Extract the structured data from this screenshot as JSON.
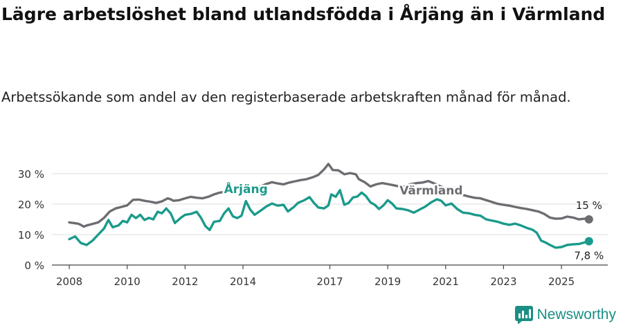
{
  "header": {
    "title": "Lägre arbetslöshet bland utlandsfödda i Årjäng än i Värmland",
    "subtitle": "Arbetssökande som andel av den registerbaserade arbetskraften månad för månad."
  },
  "brand": {
    "name": "Newsworthy"
  },
  "colors": {
    "arjang": "#1a9a8b",
    "varmland": "#6d6c71",
    "grid": "#dcdcdc",
    "axis": "#444444"
  },
  "chart_data": {
    "type": "line",
    "title": "Lägre arbetslöshet bland utlandsfödda i Årjäng än i Värmland",
    "subtitle": "Arbetssökande som andel av den registerbaserade arbetskraften månad för månad.",
    "xlabel": "",
    "ylabel": "",
    "ylim": [
      0,
      30
    ],
    "xlim": [
      2007.4,
      2026.6
    ],
    "grid": true,
    "legend": "inline labels",
    "yticks": [
      0,
      10,
      20,
      30
    ],
    "ytick_labels": [
      "0 %",
      "10 %",
      "20 %",
      "30 %"
    ],
    "xticks": [
      2008,
      2010,
      2012,
      2014,
      2017,
      2019,
      2021,
      2023,
      2025
    ],
    "xtick_labels": [
      "2008",
      "2010",
      "2012",
      "2014",
      "2017",
      "2019",
      "2021",
      "2023",
      "2025"
    ],
    "series": [
      {
        "name": "Värmland",
        "key": "varmland",
        "label": "Värmland",
        "end_label": "15 %",
        "points": [
          [
            2008.0,
            14
          ],
          [
            2008.3,
            13.6
          ],
          [
            2008.4,
            13.2
          ],
          [
            2008.5,
            12.6
          ],
          [
            2008.6,
            13.0
          ],
          [
            2008.8,
            13.5
          ],
          [
            2009.0,
            14.0
          ],
          [
            2009.2,
            15.5
          ],
          [
            2009.4,
            17.6
          ],
          [
            2009.6,
            18.6
          ],
          [
            2009.8,
            19.1
          ],
          [
            2010.0,
            19.6
          ],
          [
            2010.2,
            21.4
          ],
          [
            2010.4,
            21.5
          ],
          [
            2010.6,
            21.1
          ],
          [
            2010.8,
            20.8
          ],
          [
            2011.0,
            20.4
          ],
          [
            2011.2,
            20.9
          ],
          [
            2011.4,
            21.9
          ],
          [
            2011.5,
            21.6
          ],
          [
            2011.6,
            21.1
          ],
          [
            2011.8,
            21.3
          ],
          [
            2012.0,
            21.9
          ],
          [
            2012.2,
            22.4
          ],
          [
            2012.4,
            22.1
          ],
          [
            2012.6,
            21.9
          ],
          [
            2012.8,
            22.4
          ],
          [
            2013.0,
            23.2
          ],
          [
            2013.2,
            23.8
          ],
          [
            2013.4,
            24.0
          ],
          [
            2013.6,
            24.9
          ],
          [
            2013.8,
            25.2
          ],
          [
            2014.0,
            26.0
          ],
          [
            2014.2,
            25.6
          ],
          [
            2014.4,
            25.3
          ],
          [
            2014.6,
            25.8
          ],
          [
            2014.8,
            26.6
          ],
          [
            2015.0,
            27.2
          ],
          [
            2015.2,
            26.8
          ],
          [
            2015.4,
            26.5
          ],
          [
            2015.6,
            27.1
          ],
          [
            2015.8,
            27.5
          ],
          [
            2016.0,
            27.9
          ],
          [
            2016.2,
            28.2
          ],
          [
            2016.4,
            28.8
          ],
          [
            2016.6,
            29.6
          ],
          [
            2016.8,
            31.4
          ],
          [
            2016.95,
            33.2
          ],
          [
            2017.1,
            31.2
          ],
          [
            2017.3,
            31.1
          ],
          [
            2017.5,
            29.8
          ],
          [
            2017.7,
            30.2
          ],
          [
            2017.9,
            29.8
          ],
          [
            2018.0,
            28.2
          ],
          [
            2018.2,
            27.2
          ],
          [
            2018.4,
            25.8
          ],
          [
            2018.6,
            26.5
          ],
          [
            2018.8,
            26.9
          ],
          [
            2019.0,
            26.6
          ],
          [
            2019.2,
            26.2
          ],
          [
            2019.4,
            25.8
          ],
          [
            2019.6,
            25.8
          ],
          [
            2019.8,
            26.6
          ],
          [
            2020.0,
            26.9
          ],
          [
            2020.2,
            27.1
          ],
          [
            2020.4,
            27.6
          ],
          [
            2020.6,
            26.8
          ],
          [
            2020.8,
            25.9
          ],
          [
            2021.0,
            25.2
          ],
          [
            2021.2,
            24.3
          ],
          [
            2021.4,
            23.7
          ],
          [
            2021.6,
            23.0
          ],
          [
            2021.8,
            22.5
          ],
          [
            2022.0,
            22.1
          ],
          [
            2022.2,
            21.9
          ],
          [
            2022.4,
            21.3
          ],
          [
            2022.6,
            20.7
          ],
          [
            2022.8,
            20.1
          ],
          [
            2023.0,
            19.8
          ],
          [
            2023.2,
            19.5
          ],
          [
            2023.4,
            19.1
          ],
          [
            2023.6,
            18.7
          ],
          [
            2023.8,
            18.4
          ],
          [
            2024.0,
            18.0
          ],
          [
            2024.2,
            17.6
          ],
          [
            2024.4,
            16.8
          ],
          [
            2024.6,
            15.6
          ],
          [
            2024.8,
            15.2
          ],
          [
            2025.0,
            15.3
          ],
          [
            2025.2,
            15.9
          ],
          [
            2025.4,
            15.6
          ],
          [
            2025.6,
            15.0
          ],
          [
            2025.8,
            15.2
          ],
          [
            2025.95,
            15.0
          ]
        ]
      },
      {
        "name": "Årjäng",
        "key": "arjang",
        "label": "Årjäng",
        "end_label": "7,8 %",
        "points": [
          [
            2008.0,
            8.5
          ],
          [
            2008.2,
            9.4
          ],
          [
            2008.4,
            7.2
          ],
          [
            2008.6,
            6.6
          ],
          [
            2008.8,
            8.0
          ],
          [
            2009.0,
            10.0
          ],
          [
            2009.2,
            12.0
          ],
          [
            2009.35,
            14.8
          ],
          [
            2009.5,
            12.4
          ],
          [
            2009.7,
            13.0
          ],
          [
            2009.85,
            14.5
          ],
          [
            2010.0,
            14.0
          ],
          [
            2010.15,
            16.5
          ],
          [
            2010.3,
            15.4
          ],
          [
            2010.45,
            16.5
          ],
          [
            2010.6,
            14.8
          ],
          [
            2010.75,
            15.5
          ],
          [
            2010.9,
            15.0
          ],
          [
            2011.05,
            17.5
          ],
          [
            2011.2,
            17.0
          ],
          [
            2011.35,
            18.6
          ],
          [
            2011.5,
            17.0
          ],
          [
            2011.65,
            13.8
          ],
          [
            2011.85,
            15.5
          ],
          [
            2012.0,
            16.5
          ],
          [
            2012.2,
            16.8
          ],
          [
            2012.4,
            17.5
          ],
          [
            2012.55,
            15.5
          ],
          [
            2012.7,
            12.8
          ],
          [
            2012.85,
            11.5
          ],
          [
            2013.0,
            14.2
          ],
          [
            2013.2,
            14.5
          ],
          [
            2013.35,
            17.0
          ],
          [
            2013.5,
            18.6
          ],
          [
            2013.65,
            16.0
          ],
          [
            2013.8,
            15.4
          ],
          [
            2013.95,
            16.2
          ],
          [
            2014.1,
            21.0
          ],
          [
            2014.25,
            18.2
          ],
          [
            2014.4,
            16.5
          ],
          [
            2014.6,
            17.8
          ],
          [
            2014.8,
            19.2
          ],
          [
            2015.0,
            20.2
          ],
          [
            2015.2,
            19.5
          ],
          [
            2015.4,
            19.8
          ],
          [
            2015.55,
            17.6
          ],
          [
            2015.75,
            19.0
          ],
          [
            2015.9,
            20.4
          ],
          [
            2016.1,
            21.2
          ],
          [
            2016.3,
            22.3
          ],
          [
            2016.45,
            20.4
          ],
          [
            2016.6,
            18.9
          ],
          [
            2016.8,
            18.6
          ],
          [
            2016.95,
            19.6
          ],
          [
            2017.05,
            23.2
          ],
          [
            2017.2,
            22.4
          ],
          [
            2017.35,
            24.6
          ],
          [
            2017.5,
            19.8
          ],
          [
            2017.65,
            20.4
          ],
          [
            2017.8,
            22.2
          ],
          [
            2017.95,
            22.5
          ],
          [
            2018.1,
            23.8
          ],
          [
            2018.25,
            22.6
          ],
          [
            2018.4,
            20.6
          ],
          [
            2018.55,
            19.8
          ],
          [
            2018.7,
            18.4
          ],
          [
            2018.85,
            19.6
          ],
          [
            2019.0,
            21.3
          ],
          [
            2019.15,
            20.2
          ],
          [
            2019.3,
            18.6
          ],
          [
            2019.5,
            18.4
          ],
          [
            2019.7,
            18.0
          ],
          [
            2019.9,
            17.2
          ],
          [
            2020.1,
            18.2
          ],
          [
            2020.3,
            19.2
          ],
          [
            2020.5,
            20.6
          ],
          [
            2020.7,
            21.6
          ],
          [
            2020.85,
            21.1
          ],
          [
            2021.0,
            19.6
          ],
          [
            2021.2,
            20.2
          ],
          [
            2021.4,
            18.4
          ],
          [
            2021.6,
            17.2
          ],
          [
            2021.8,
            17.0
          ],
          [
            2022.0,
            16.5
          ],
          [
            2022.2,
            16.2
          ],
          [
            2022.4,
            15.0
          ],
          [
            2022.6,
            14.6
          ],
          [
            2022.8,
            14.2
          ],
          [
            2023.0,
            13.6
          ],
          [
            2023.2,
            13.2
          ],
          [
            2023.4,
            13.6
          ],
          [
            2023.6,
            13.0
          ],
          [
            2023.8,
            12.2
          ],
          [
            2024.0,
            11.6
          ],
          [
            2024.15,
            10.6
          ],
          [
            2024.3,
            8.0
          ],
          [
            2024.45,
            7.4
          ],
          [
            2024.6,
            6.6
          ],
          [
            2024.8,
            5.7
          ],
          [
            2025.0,
            5.9
          ],
          [
            2025.2,
            6.6
          ],
          [
            2025.4,
            6.8
          ],
          [
            2025.6,
            6.9
          ],
          [
            2025.8,
            7.4
          ],
          [
            2025.95,
            7.8
          ]
        ]
      }
    ]
  }
}
